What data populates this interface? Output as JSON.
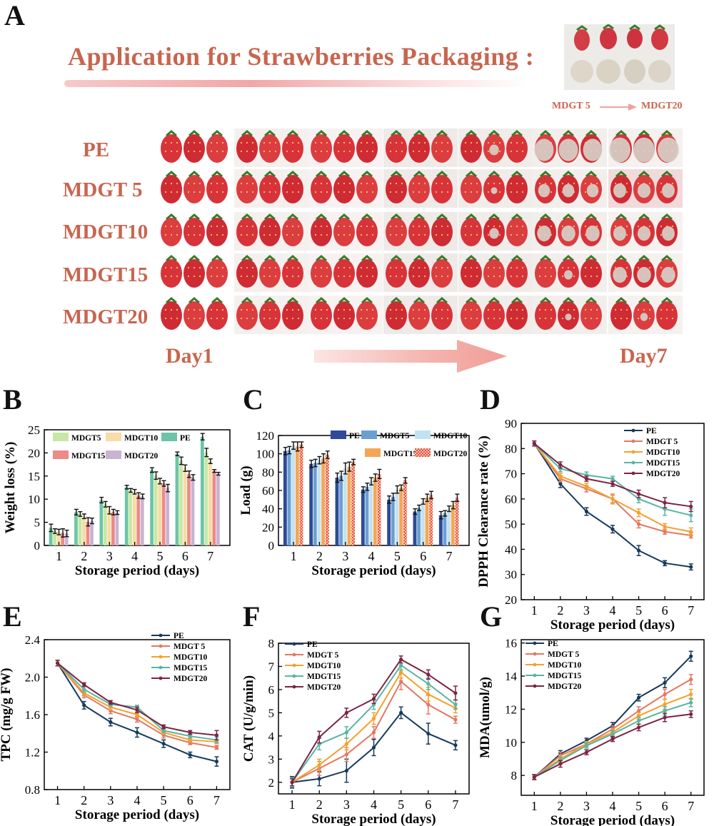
{
  "panelA": {
    "letter": "A",
    "title": "Application  for Strawberries Packaging :",
    "rows": [
      "PE",
      "MDGT 5",
      "MDGT10",
      "MDGT15",
      "MDGT20"
    ],
    "day_start": "Day1",
    "day_end": "Day7",
    "inset_from": "MDGT 5",
    "inset_to": "MDGT20",
    "colors": {
      "text": "#c8654f",
      "strawberry": "#d8333a",
      "mold": "#d9d4cc"
    }
  },
  "chart_data": [
    {
      "panel": "B",
      "type": "bar",
      "title": "",
      "xlabel": "Storage period (days)",
      "ylabel": "Weight loss (%)",
      "categories": [
        "1",
        "2",
        "3",
        "4",
        "5",
        "6",
        "7"
      ],
      "ylim": [
        0,
        25
      ],
      "yticks": [
        "0",
        "5",
        "10",
        "15",
        "20",
        "25"
      ],
      "legend_order": [
        0,
        1,
        2,
        3,
        4
      ],
      "series": [
        {
          "name": "PE",
          "color": "#6cc4a7",
          "values": [
            3.8,
            7.2,
            9.8,
            12.6,
            16.3,
            19.8,
            23.5
          ],
          "errors": [
            0.8,
            0.6,
            0.6,
            0.4,
            0.5,
            0.4,
            0.7
          ]
        },
        {
          "name": "MDGT5",
          "color": "#c6e8a3",
          "values": [
            3.1,
            6.8,
            8.9,
            11.9,
            15.1,
            18.3,
            20.1
          ],
          "errors": [
            0.5,
            0.5,
            0.6,
            0.4,
            0.8,
            0.8,
            0.9
          ]
        },
        {
          "name": "MDGT10",
          "color": "#f8dba6",
          "values": [
            2.9,
            6.3,
            7.6,
            11.6,
            13.9,
            16.7,
            18.2
          ],
          "errors": [
            0.6,
            0.5,
            0.8,
            0.5,
            0.6,
            0.7,
            0.5
          ]
        },
        {
          "name": "MDGT15",
          "color": "#ec8a86",
          "values": [
            2.7,
            5.1,
            7.2,
            10.8,
            13.4,
            15.4,
            16.1
          ],
          "errors": [
            0.9,
            0.9,
            0.6,
            0.6,
            0.6,
            0.7,
            0.3
          ]
        },
        {
          "name": "MDGT20",
          "color": "#c9b3d3",
          "values": [
            2.6,
            5.3,
            7.1,
            10.6,
            12.4,
            14.7,
            15.5
          ],
          "errors": [
            0.7,
            0.6,
            0.4,
            0.5,
            0.8,
            0.6,
            0.3
          ]
        }
      ],
      "legend_names": [
        "MDGT5",
        "MDGT10",
        "PE",
        "MDGT15",
        "MDGT20"
      ]
    },
    {
      "panel": "C",
      "type": "bar",
      "title": "",
      "xlabel": "Storage period (days)",
      "ylabel": "Load (g)",
      "categories": [
        "1",
        "2",
        "3",
        "4",
        "5",
        "6",
        "7"
      ],
      "ylim": [
        0,
        120
      ],
      "yticks": [
        "0",
        "20",
        "40",
        "60",
        "80",
        "100",
        "120"
      ],
      "series": [
        {
          "name": "PE",
          "color": "#2e4a98",
          "values": [
            103,
            89,
            74,
            61,
            50,
            37,
            33
          ],
          "errors": [
            4,
            4,
            5,
            3,
            4,
            3,
            4
          ]
        },
        {
          "name": "MDGT5",
          "color": "#6b9fd1",
          "values": [
            104,
            90,
            76,
            64,
            53,
            41,
            35
          ],
          "errors": [
            4,
            4,
            5,
            4,
            4,
            3,
            3
          ]
        },
        {
          "name": "MDGT10",
          "color": "#c3e2f1",
          "values": [
            109,
            93,
            84,
            70,
            61,
            48,
            40
          ],
          "errors": [
            4,
            4,
            6,
            4,
            4,
            3,
            3
          ]
        },
        {
          "name": "MDGT15",
          "color": "#f5a654",
          "values": [
            108,
            95,
            86,
            74,
            63,
            52,
            44
          ],
          "errors": [
            5,
            5,
            5,
            4,
            3,
            4,
            4
          ]
        },
        {
          "name": "MDGT20",
          "color": "#e2543c",
          "values": [
            110,
            99,
            91,
            78,
            71,
            55,
            52
          ],
          "errors": [
            3,
            4,
            3,
            5,
            3,
            4,
            4
          ]
        }
      ],
      "legend_names": [
        "PE",
        "MDGT5",
        "MDGT10",
        "MDGT15",
        "MDGT20"
      ]
    },
    {
      "panel": "D",
      "type": "line",
      "title": "",
      "xlabel": "Storage period (days)",
      "ylabel": "DPPH Clearance rate (%)",
      "x": [
        1,
        2,
        3,
        4,
        5,
        6,
        7
      ],
      "xlim": [
        0.5,
        7.5
      ],
      "ylim": [
        20,
        90
      ],
      "yticks": [
        "20",
        "30",
        "40",
        "50",
        "60",
        "70",
        "80",
        "90"
      ],
      "series": [
        {
          "name": "PE",
          "color": "#163a5c",
          "values": [
            82,
            66,
            55,
            48,
            39.5,
            34.5,
            33
          ],
          "errors": [
            1,
            1.5,
            1.5,
            1.5,
            2,
            1,
            1.2
          ]
        },
        {
          "name": "MDGT 5",
          "color": "#e47861",
          "values": [
            82,
            68,
            64,
            60,
            50,
            47,
            45.5
          ],
          "errors": [
            1,
            1.2,
            1.2,
            1.5,
            1.5,
            1,
            1
          ]
        },
        {
          "name": "MDGT10",
          "color": "#f4a02e",
          "values": [
            82,
            69,
            65,
            60,
            54.5,
            49,
            47
          ],
          "errors": [
            1,
            1.2,
            1.2,
            2,
            1.5,
            1.2,
            1.5
          ]
        },
        {
          "name": "MDGT15",
          "color": "#59b5a2",
          "values": [
            82,
            72,
            69.5,
            68,
            60,
            56,
            53.5
          ],
          "errors": [
            1,
            1.2,
            1.2,
            1,
            1.5,
            2.5,
            2.5
          ]
        },
        {
          "name": "MDGT20",
          "color": "#7c2444",
          "values": [
            82,
            73.5,
            68,
            66,
            62,
            58.5,
            57
          ],
          "errors": [
            1,
            1.2,
            1,
            1,
            1.5,
            2,
            2
          ]
        }
      ]
    },
    {
      "panel": "E",
      "type": "line",
      "title": "",
      "xlabel": "Storage period (days)",
      "ylabel": "TPC (mg/g FW)",
      "x": [
        1,
        2,
        3,
        4,
        5,
        6,
        7
      ],
      "xlim": [
        0.5,
        7.5
      ],
      "ylim": [
        0.8,
        2.4
      ],
      "yticks": [
        "0.8",
        "1.2",
        "1.6",
        "2.0",
        "2.4"
      ],
      "series": [
        {
          "name": "PE",
          "color": "#163a5c",
          "values": [
            2.15,
            1.7,
            1.52,
            1.41,
            1.29,
            1.17,
            1.1
          ],
          "errors": [
            0.03,
            0.04,
            0.04,
            0.05,
            0.04,
            0.03,
            0.05
          ]
        },
        {
          "name": "MDGT 5",
          "color": "#e47861",
          "values": [
            2.15,
            1.81,
            1.64,
            1.55,
            1.38,
            1.3,
            1.25
          ],
          "errors": [
            0.03,
            0.03,
            0.03,
            0.03,
            0.03,
            0.02,
            0.02
          ]
        },
        {
          "name": "MDGT10",
          "color": "#f4a02e",
          "values": [
            2.15,
            1.83,
            1.68,
            1.6,
            1.41,
            1.33,
            1.31
          ],
          "errors": [
            0.03,
            0.03,
            0.03,
            0.03,
            0.02,
            0.02,
            0.02
          ]
        },
        {
          "name": "MDGT15",
          "color": "#59b5a2",
          "values": [
            2.15,
            1.87,
            1.71,
            1.68,
            1.43,
            1.37,
            1.33
          ],
          "errors": [
            0.03,
            0.03,
            0.02,
            0.02,
            0.02,
            0.02,
            0.03
          ]
        },
        {
          "name": "MDGT20",
          "color": "#7c2444",
          "values": [
            2.15,
            1.92,
            1.73,
            1.65,
            1.47,
            1.41,
            1.38
          ],
          "errors": [
            0.03,
            0.02,
            0.02,
            0.03,
            0.02,
            0.02,
            0.05
          ]
        }
      ]
    },
    {
      "panel": "F",
      "type": "line",
      "title": "",
      "xlabel": "Storage period (days)",
      "ylabel": "CAT (U/g/min)",
      "x": [
        1,
        2,
        3,
        4,
        5,
        6,
        7
      ],
      "xlim": [
        0.5,
        7.5
      ],
      "ylim": [
        1.5,
        8
      ],
      "yticks": [
        "2",
        "3",
        "4",
        "5",
        "6",
        "7",
        "8"
      ],
      "series": [
        {
          "name": "PE",
          "color": "#163a5c",
          "values": [
            2.0,
            2.15,
            2.5,
            3.5,
            5.0,
            4.1,
            3.6
          ],
          "errors": [
            0.25,
            0.3,
            0.5,
            0.35,
            0.25,
            0.45,
            0.2
          ]
        },
        {
          "name": "MDGT 5",
          "color": "#e47861",
          "values": [
            2.0,
            2.6,
            3.2,
            4.15,
            6.35,
            5.35,
            4.7
          ],
          "errors": [
            0.2,
            0.3,
            0.3,
            0.25,
            0.35,
            0.4,
            0.15
          ]
        },
        {
          "name": "MDGT10",
          "color": "#f4a02e",
          "values": [
            2.0,
            2.75,
            3.65,
            4.75,
            6.75,
            5.8,
            5.2
          ],
          "errors": [
            0.2,
            0.25,
            0.25,
            0.25,
            0.25,
            0.3,
            0.2
          ]
        },
        {
          "name": "MDGT15",
          "color": "#59b5a2",
          "values": [
            2.0,
            3.65,
            4.15,
            5.35,
            7.05,
            6.25,
            5.35
          ],
          "errors": [
            0.2,
            0.25,
            0.25,
            0.2,
            0.2,
            0.25,
            0.2
          ]
        },
        {
          "name": "MDGT20",
          "color": "#7c2444",
          "values": [
            2.0,
            3.95,
            5.0,
            5.6,
            7.3,
            6.65,
            5.85
          ],
          "errors": [
            0.15,
            0.25,
            0.2,
            0.2,
            0.15,
            0.2,
            0.3
          ]
        }
      ]
    },
    {
      "panel": "G",
      "type": "line",
      "title": "",
      "xlabel": "Storage period (days)",
      "ylabel": "MDA(umol/g)",
      "x": [
        1,
        2,
        3,
        4,
        5,
        6,
        7
      ],
      "xlim": [
        0.5,
        7.5
      ],
      "ylim": [
        6.8,
        16.2
      ],
      "yticks": [
        "8",
        "10",
        "12",
        "14",
        "16"
      ],
      "series": [
        {
          "name": "PE",
          "color": "#163a5c",
          "values": [
            7.9,
            9.3,
            10.1,
            11.0,
            12.7,
            13.6,
            15.2
          ],
          "errors": [
            0.15,
            0.2,
            0.15,
            0.2,
            0.2,
            0.3,
            0.3
          ]
        },
        {
          "name": "MDGT 5",
          "color": "#e47861",
          "values": [
            7.9,
            9.2,
            9.9,
            10.8,
            11.9,
            12.9,
            13.8
          ],
          "errors": [
            0.15,
            0.2,
            0.15,
            0.2,
            0.25,
            0.3,
            0.3
          ]
        },
        {
          "name": "MDGT10",
          "color": "#f4a02e",
          "values": [
            7.9,
            9.0,
            9.9,
            10.6,
            11.6,
            12.3,
            12.9
          ],
          "errors": [
            0.15,
            0.2,
            0.15,
            0.2,
            0.2,
            0.3,
            0.3
          ]
        },
        {
          "name": "MDGT15",
          "color": "#59b5a2",
          "values": [
            7.9,
            8.9,
            9.8,
            10.5,
            11.3,
            11.9,
            12.4
          ],
          "errors": [
            0.15,
            0.2,
            0.15,
            0.2,
            0.2,
            0.25,
            0.25
          ]
        },
        {
          "name": "MDGT20",
          "color": "#7c2444",
          "values": [
            7.9,
            8.7,
            9.4,
            10.2,
            10.9,
            11.5,
            11.7
          ],
          "errors": [
            0.15,
            0.2,
            0.15,
            0.15,
            0.2,
            0.25,
            0.2
          ]
        }
      ]
    }
  ]
}
